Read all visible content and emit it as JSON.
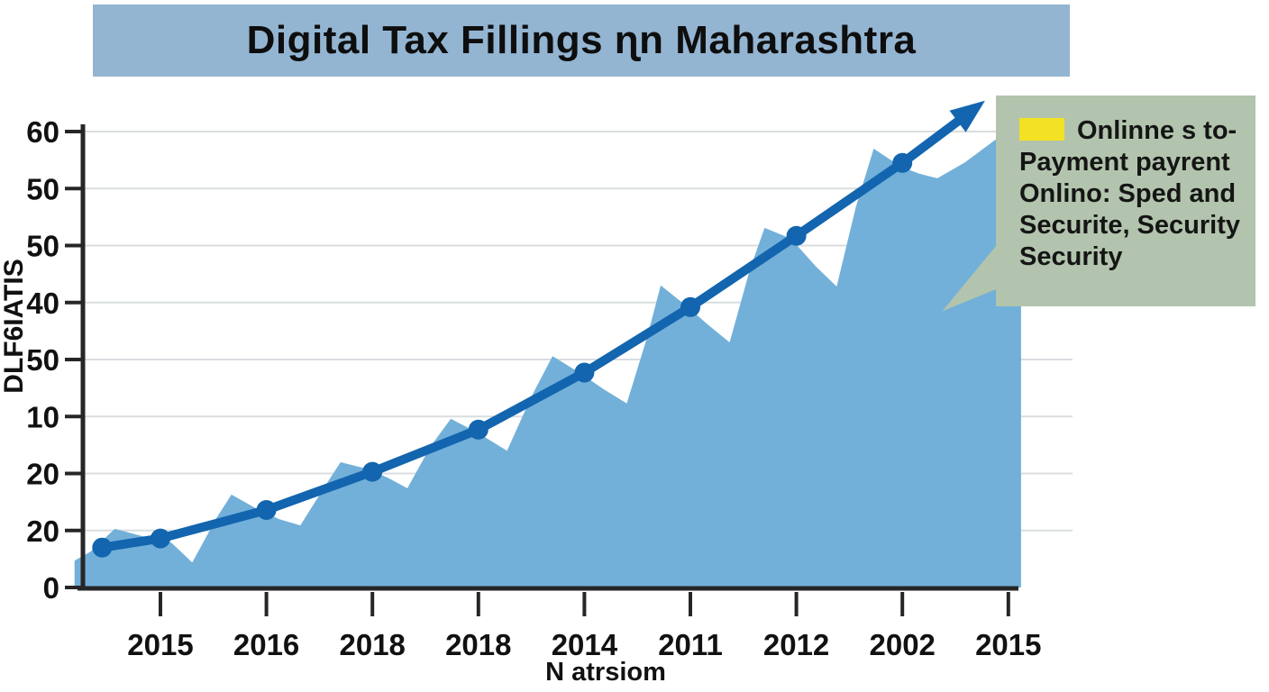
{
  "colors": {
    "title_bar_bg": "#93b5d2",
    "area_fill": "#72b0d9",
    "line": "#1265ae",
    "grid": "#d9dde0",
    "axis": "#262626",
    "text": "#111111",
    "legend_bg": "#b2c4ad",
    "legend_swatch": "#f3e224"
  },
  "legend": {
    "lines": [
      "Onlinne s to-",
      "Payment payrent",
      "Onlino: Sped and",
      "Securite, Security",
      "Security"
    ]
  },
  "chart_data": {
    "type": "area",
    "title": "Digital Tax Fillings  ɳn Maharashtra",
    "xlabel": "N atrsiom",
    "ylabel": "DLF6IATIS",
    "x_tick_labels": [
      "2015",
      "2016",
      "2018",
      "2018",
      "2014",
      "2011",
      "2012",
      "2002",
      "2015"
    ],
    "y_tick_labels_bottom_to_top": [
      "0",
      "20",
      "20",
      "10",
      "50",
      "40",
      "50",
      "50",
      "60"
    ],
    "value_scale": {
      "min": 0,
      "max": 80,
      "gridline_step": 10,
      "grid_on": true
    },
    "legend_position": "upper right callout box",
    "series": [
      {
        "name": "trend-line",
        "type": "line",
        "marker": "circle",
        "points": [
          [
            -0.55,
            7.0
          ],
          [
            0,
            8.6
          ],
          [
            1,
            13.6
          ],
          [
            2,
            20.3
          ],
          [
            3,
            27.7
          ],
          [
            4,
            37.7
          ],
          [
            5,
            49.2
          ],
          [
            6,
            61.7
          ],
          [
            7,
            74.5
          ]
        ],
        "arrow_tip": [
          7.78,
          85.4
        ]
      },
      {
        "name": "filled-area",
        "type": "area",
        "outline": [
          [
            -0.81,
            0
          ],
          [
            -0.81,
            4.7
          ],
          [
            -0.66,
            6.3
          ],
          [
            -0.43,
            10.3
          ],
          [
            -0.11,
            8.7
          ],
          [
            0.1,
            7.9
          ],
          [
            0.3,
            4.4
          ],
          [
            0.53,
            12.2
          ],
          [
            0.67,
            16.3
          ],
          [
            0.91,
            13.8
          ],
          [
            1.12,
            12.0
          ],
          [
            1.32,
            10.9
          ],
          [
            1.55,
            17.7
          ],
          [
            1.7,
            22.0
          ],
          [
            1.93,
            20.9
          ],
          [
            2.14,
            19.3
          ],
          [
            2.33,
            17.4
          ],
          [
            2.55,
            24.8
          ],
          [
            2.74,
            29.6
          ],
          [
            2.99,
            27.2
          ],
          [
            3.27,
            24.0
          ],
          [
            3.5,
            33.5
          ],
          [
            3.7,
            40.6
          ],
          [
            3.97,
            37.5
          ],
          [
            4.18,
            34.8
          ],
          [
            4.4,
            32.3
          ],
          [
            4.59,
            43.8
          ],
          [
            4.72,
            53.0
          ],
          [
            4.97,
            49.3
          ],
          [
            5.16,
            46.2
          ],
          [
            5.37,
            43.0
          ],
          [
            5.56,
            55.7
          ],
          [
            5.7,
            63.1
          ],
          [
            5.95,
            61.2
          ],
          [
            6.18,
            56.4
          ],
          [
            6.38,
            52.8
          ],
          [
            6.56,
            66.7
          ],
          [
            6.73,
            77.0
          ],
          [
            6.99,
            73.8
          ],
          [
            7.16,
            72.6
          ],
          [
            7.33,
            71.8
          ],
          [
            7.59,
            74.6
          ],
          [
            7.88,
            78.6
          ],
          [
            8.12,
            79.7
          ],
          [
            8.12,
            0
          ]
        ]
      }
    ]
  }
}
